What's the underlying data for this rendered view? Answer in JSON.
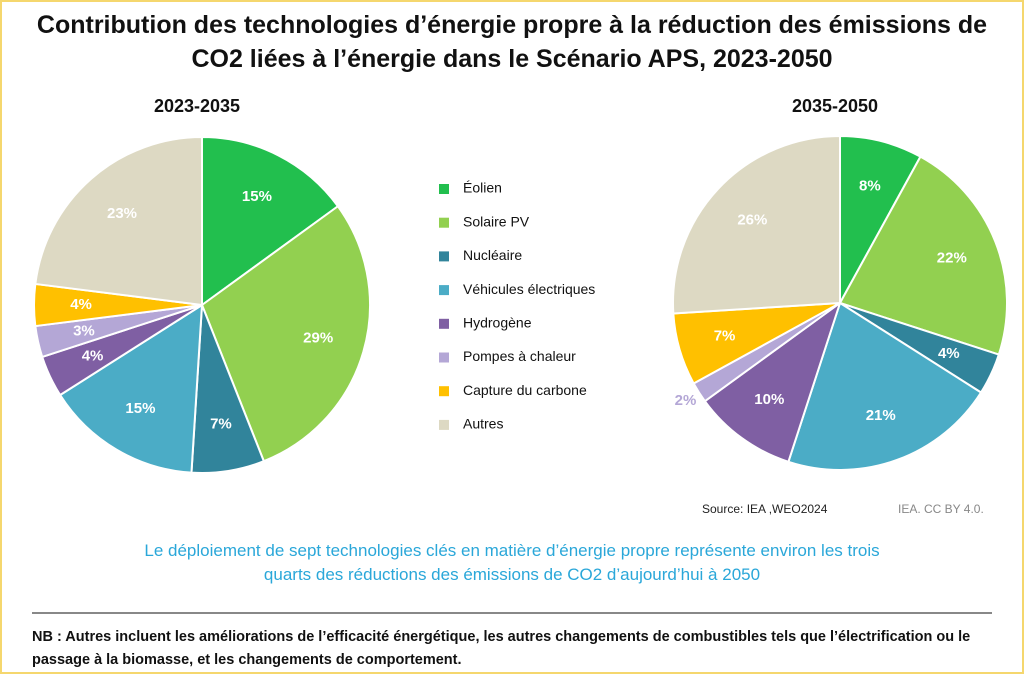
{
  "title": "Contribution des technologies d’énergie propre à la réduction des émissions de CO2 liées à l’énergie dans le Scénario APS, 2023-2050",
  "source": "Source: IEA ,WEO2024",
  "credit": "IEA. CC BY 4.0.",
  "caption": "Le déploiement de sept technologies clés en matière d’énergie propre représente environ les trois quarts des réductions des émissions de CO2 d’aujourd’hui à 2050",
  "note": "NB : Autres incluent les améliorations de l’efficacité énergétique, les autres changements de combustibles tels que l’électrification ou le passage à la biomasse, et les changements de comportement.",
  "chart_data": [
    {
      "type": "pie",
      "title": "2023-2035",
      "categories": [
        "Éolien",
        "Solaire PV",
        "Nucléaire",
        "Véhicules électriques",
        "Hydrogène",
        "Pompes à chaleur",
        "Capture du carbone",
        "Autres"
      ],
      "values": [
        15,
        29,
        7,
        15,
        4,
        3,
        4,
        23
      ],
      "value_labels": [
        "15%",
        "29%",
        "7%",
        "15%",
        "4%",
        "3%",
        "4%",
        "23%"
      ],
      "colors": [
        "#22bf4e",
        "#92d050",
        "#31849b",
        "#4bacc6",
        "#7f5fa3",
        "#b4a7d6",
        "#ffc000",
        "#ddd9c3"
      ]
    },
    {
      "type": "pie",
      "title": "2035-2050",
      "categories": [
        "Éolien",
        "Solaire PV",
        "Nucléaire",
        "Véhicules électriques",
        "Hydrogène",
        "Pompes à chaleur",
        "Capture du carbone",
        "Autres"
      ],
      "values": [
        8,
        22,
        4,
        21,
        10,
        2,
        7,
        26
      ],
      "value_labels": [
        "8%",
        "22%",
        "4%",
        "21%",
        "10%",
        "2%",
        "7%",
        "26%"
      ],
      "colors": [
        "#22bf4e",
        "#92d050",
        "#31849b",
        "#4bacc6",
        "#7f5fa3",
        "#b4a7d6",
        "#ffc000",
        "#ddd9c3"
      ]
    }
  ]
}
